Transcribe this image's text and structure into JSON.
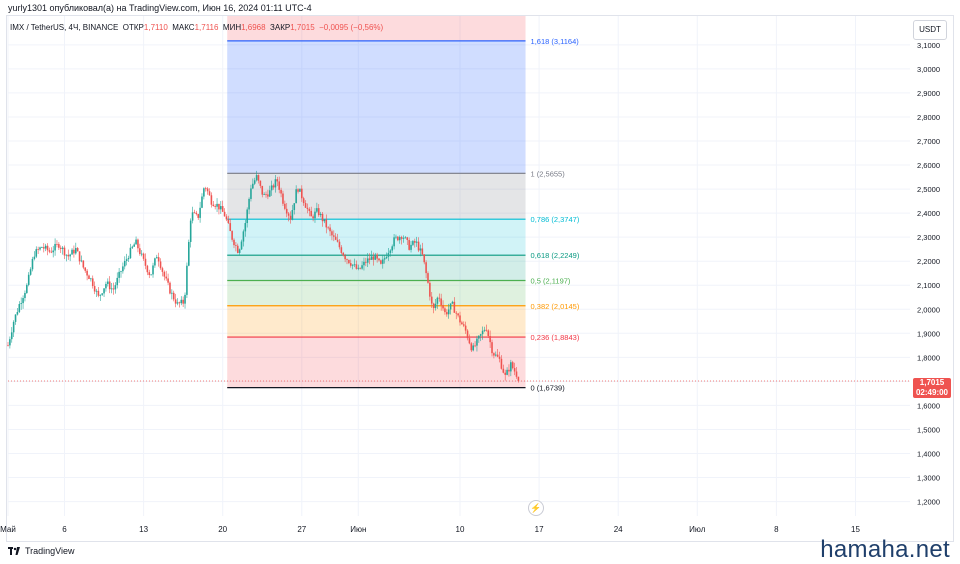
{
  "caption": "yurly1301 опубликовал(а) на TradingView.com, Июн 16, 2024 01:11 UTC-4",
  "ohlc": {
    "symbol": "IMX / TetherUS, 4Ч, BINANCE",
    "open_label": "ОТКР",
    "open": "1,7110",
    "high_label": "МАКС",
    "high": "1,7116",
    "low_label": "МИН",
    "low": "1,6968",
    "close_label": "ЗАКР",
    "close": "1,7015",
    "change": "−0,0095 (−0,56%)"
  },
  "currency": "USDT",
  "last_price": {
    "value": "1,7015",
    "countdown": "02:49:00"
  },
  "footer": {
    "logo_text": "TradingView"
  },
  "watermark": "hamaha.net",
  "colors": {
    "up": "#26a69a",
    "down": "#ef5350",
    "last_line": "#ef5350"
  },
  "chart_data": {
    "type": "candlestick",
    "y_axis": {
      "range": [
        1.14,
        3.22
      ],
      "ticks": [
        1.2,
        1.3,
        1.4,
        1.5,
        1.6,
        1.7,
        1.8,
        1.9,
        2.0,
        2.1,
        2.2,
        2.3,
        2.4,
        2.5,
        2.6,
        2.7,
        2.8,
        2.9,
        3.0,
        3.1
      ],
      "tick_labels": [
        "1,2000",
        "1,3000",
        "1,4000",
        "1,5000",
        "1,6000",
        "1,7000",
        "1,8000",
        "1,9000",
        "2,0000",
        "2,1000",
        "2,2000",
        "2,3000",
        "2,4000",
        "2,5000",
        "2,6000",
        "2,7000",
        "2,8000",
        "2,9000",
        "3,0000",
        "3,1000"
      ]
    },
    "x_axis": {
      "day_range": [
        0,
        55
      ],
      "ticks": [
        {
          "day": 0,
          "label": "Май"
        },
        {
          "day": 5,
          "label": "6"
        },
        {
          "day": 12,
          "label": "13"
        },
        {
          "day": 19,
          "label": "20"
        },
        {
          "day": 26,
          "label": "27"
        },
        {
          "day": 31,
          "label": "Июн"
        },
        {
          "day": 40,
          "label": "10"
        },
        {
          "day": 47,
          "label": "17"
        },
        {
          "day": 54,
          "label": "24"
        },
        {
          "day": 61,
          "label": "Июл"
        },
        {
          "day": 68,
          "label": "8"
        },
        {
          "day": 75,
          "label": "15"
        }
      ]
    },
    "price_path": [
      [
        0,
        1.85
      ],
      [
        0.5,
        1.95
      ],
      [
        1,
        2.02
      ],
      [
        1.7,
        2.1
      ],
      [
        2.3,
        2.23
      ],
      [
        3,
        2.26
      ],
      [
        3.7,
        2.24
      ],
      [
        4.5,
        2.27
      ],
      [
        5.3,
        2.22
      ],
      [
        6,
        2.25
      ],
      [
        6.7,
        2.17
      ],
      [
        7.4,
        2.12
      ],
      [
        8,
        2.05
      ],
      [
        8.7,
        2.11
      ],
      [
        9.3,
        2.08
      ],
      [
        10,
        2.16
      ],
      [
        10.7,
        2.23
      ],
      [
        11.3,
        2.28
      ],
      [
        12,
        2.2
      ],
      [
        12.6,
        2.14
      ],
      [
        13.2,
        2.23
      ],
      [
        13.8,
        2.14
      ],
      [
        14.4,
        2.07
      ],
      [
        15,
        2.02
      ],
      [
        15.6,
        2.03
      ],
      [
        16.2,
        2.4
      ],
      [
        16.8,
        2.38
      ],
      [
        17.4,
        2.52
      ],
      [
        18,
        2.45
      ],
      [
        18.6,
        2.43
      ],
      [
        19.2,
        2.39
      ],
      [
        19.8,
        2.3
      ],
      [
        20.4,
        2.24
      ],
      [
        21,
        2.36
      ],
      [
        21.5,
        2.51
      ],
      [
        22,
        2.55
      ],
      [
        22.6,
        2.47
      ],
      [
        23.2,
        2.49
      ],
      [
        23.8,
        2.54
      ],
      [
        24.4,
        2.44
      ],
      [
        25,
        2.38
      ],
      [
        25.6,
        2.51
      ],
      [
        26.2,
        2.45
      ],
      [
        26.8,
        2.38
      ],
      [
        27.4,
        2.41
      ],
      [
        28,
        2.36
      ],
      [
        28.6,
        2.31
      ],
      [
        29.2,
        2.27
      ],
      [
        29.8,
        2.22
      ],
      [
        30.4,
        2.19
      ],
      [
        31,
        2.16
      ],
      [
        31.7,
        2.2
      ],
      [
        32.4,
        2.22
      ],
      [
        33,
        2.18
      ],
      [
        33.6,
        2.24
      ],
      [
        34.2,
        2.29
      ],
      [
        34.9,
        2.31
      ],
      [
        35.5,
        2.26
      ],
      [
        36.1,
        2.28
      ],
      [
        36.7,
        2.22
      ],
      [
        37.2,
        2.1
      ],
      [
        37.6,
        1.99
      ],
      [
        38.1,
        2.06
      ],
      [
        38.7,
        1.98
      ],
      [
        39.3,
        2.02
      ],
      [
        39.9,
        1.96
      ],
      [
        40.5,
        1.91
      ],
      [
        41.1,
        1.83
      ],
      [
        41.7,
        1.88
      ],
      [
        42.3,
        1.93
      ],
      [
        42.9,
        1.82
      ],
      [
        43.5,
        1.79
      ],
      [
        44,
        1.72
      ],
      [
        44.5,
        1.77
      ],
      [
        45,
        1.73
      ],
      [
        45.3,
        1.7015
      ]
    ],
    "fibonacci": {
      "start_day": 19.4,
      "end_day": 45.8,
      "levels": [
        {
          "ratio": 1.618,
          "price": 3.1164,
          "label": "1,618 (3,1164)",
          "color": "#2962ff",
          "fill": "rgba(41,98,255,0.22)"
        },
        {
          "ratio": 1,
          "price": 2.5655,
          "label": "1 (2,5655)",
          "color": "#787b86",
          "fill": "rgba(120,123,134,0.2)"
        },
        {
          "ratio": 0.786,
          "price": 2.3747,
          "label": "0,786 (2,3747)",
          "color": "#00bcd4",
          "fill": "rgba(0,188,212,0.18)"
        },
        {
          "ratio": 0.618,
          "price": 2.2249,
          "label": "0,618 (2,2249)",
          "color": "#089981",
          "fill": "rgba(8,153,129,0.18)"
        },
        {
          "ratio": 0.5,
          "price": 2.1197,
          "label": "0,5 (2,1197)",
          "color": "#4caf50",
          "fill": "rgba(76,175,80,0.18)"
        },
        {
          "ratio": 0.382,
          "price": 2.0145,
          "label": "0,382 (2,0145)",
          "color": "#ff9800",
          "fill": "rgba(255,152,0,0.2)"
        },
        {
          "ratio": 0.236,
          "price": 1.8843,
          "label": "0,236 (1,8843)",
          "color": "#f23645",
          "fill": "rgba(242,54,69,0.18)"
        },
        {
          "ratio": 0,
          "price": 1.6739,
          "label": "0 (1,6739)",
          "color": "#131722",
          "fill": "rgba(242,54,69,0.18)"
        }
      ]
    },
    "last_price": 1.7015
  }
}
